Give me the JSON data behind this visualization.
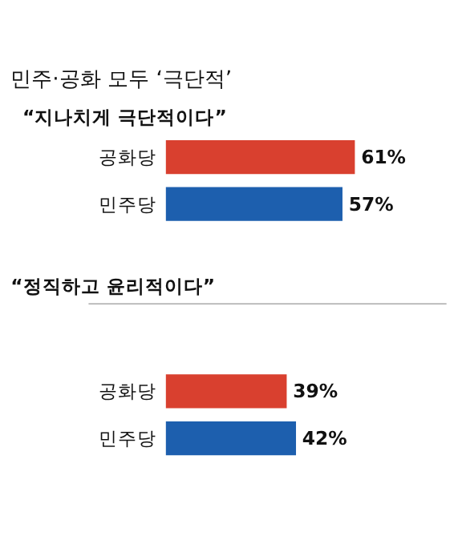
{
  "chart_data": [
    {
      "type": "bar",
      "orientation": "horizontal",
      "title": "민주·공화 모두 ‘극단적’",
      "subtitle": "“지나치게 극단적이다”",
      "categories": [
        "공화당",
        "민주당"
      ],
      "values": [
        61,
        57
      ],
      "colors": [
        "#d9402f",
        "#1d5fae"
      ],
      "value_labels": [
        "61%",
        "57%"
      ]
    },
    {
      "type": "bar",
      "orientation": "horizontal",
      "title": "“정직하고 윤리적이다”",
      "categories": [
        "공화당",
        "민주당"
      ],
      "values": [
        39,
        42
      ],
      "colors": [
        "#d9402f",
        "#1d5fae"
      ],
      "value_labels": [
        "39%",
        "42%"
      ]
    }
  ]
}
